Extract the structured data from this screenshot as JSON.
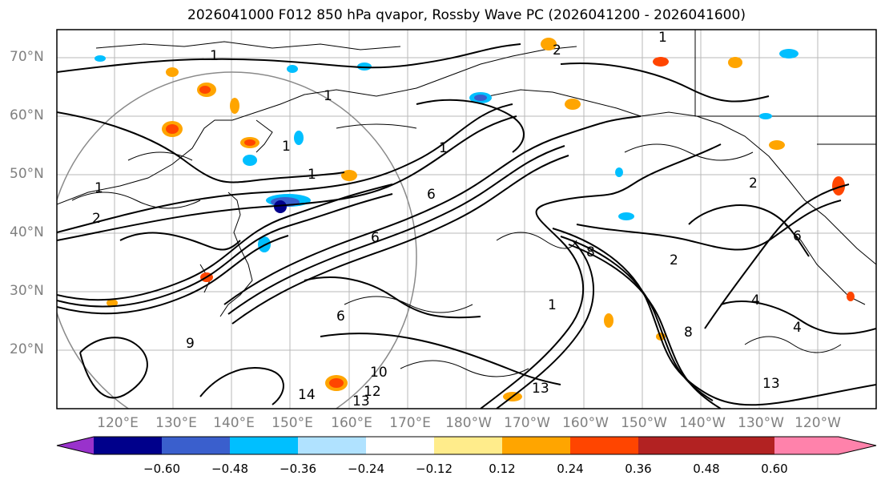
{
  "title": "2026041000 F012 850 hPa qvapor, Rossby Wave PC (2026041200 - 2026041600)",
  "latitude_labels": [
    "70°N",
    "60°N",
    "50°N",
    "40°N",
    "30°N",
    "20°N"
  ],
  "longitude_labels": [
    "120°E",
    "130°E",
    "140°E",
    "150°E",
    "160°E",
    "170°E",
    "180°W",
    "170°W",
    "160°W",
    "150°W",
    "140°W",
    "130°W",
    "120°W"
  ],
  "colorbar": {
    "tick_labels": [
      "−0.60",
      "−0.48",
      "−0.36",
      "−0.24",
      "−0.12",
      "0.12",
      "0.24",
      "0.36",
      "0.48",
      "0.60"
    ],
    "colors": [
      "#9932cc",
      "#00008b",
      "#3a5fcd",
      "#00bfff",
      "#b0e2ff",
      "#ffffff",
      "#ffec8b",
      "#ffa500",
      "#ff4500",
      "#b22222",
      "#ff82ab"
    ]
  },
  "contour_labels": [
    "1",
    "1",
    "1",
    "1",
    "1",
    "1",
    "1",
    "1",
    "2",
    "2",
    "2",
    "2",
    "4",
    "4",
    "6",
    "6",
    "6",
    "6",
    "8",
    "8",
    "9",
    "10",
    "12",
    "13",
    "13",
    "13",
    "14"
  ],
  "colors": {
    "coastline": "#000000",
    "grid": "#808080",
    "contour": "#000000",
    "label_text": "#808080"
  }
}
